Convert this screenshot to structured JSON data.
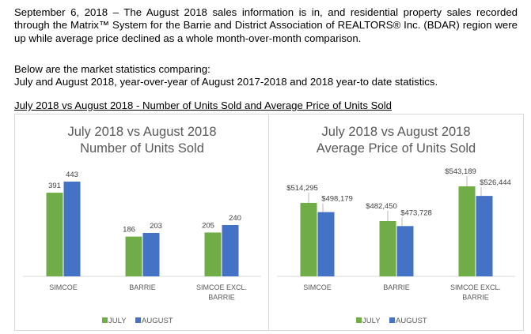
{
  "intro": {
    "paragraph": "September 6, 2018 – The August 2018 sales information is in, and residential property sales recorded through the Matrix™ System for the Barrie and District Association of REALTORS® Inc. (BDAR) region were up while average price declined as a whole month-over-month comparison.",
    "line1": "Below are the market statistics comparing:",
    "line2": "July and August 2018, year-over-year of August 2017-2018 and 2018 year-to date statistics."
  },
  "section_title": "July 2018 vs August 2018 - Number of Units Sold and Average Price of Units Sold",
  "colors": {
    "july": "#70ad47",
    "august": "#4472c4"
  },
  "chart_data": [
    {
      "type": "bar",
      "title_lines": [
        "July 2018 vs August 2018",
        "Number of Units Sold"
      ],
      "categories": [
        [
          "SIMCOE"
        ],
        [
          "BARRIE"
        ],
        [
          "SIMCOE EXCL.",
          "BARRIE"
        ]
      ],
      "series": [
        {
          "name": "JULY",
          "values": [
            391,
            186,
            205
          ],
          "labels": [
            "391",
            "186",
            "205"
          ]
        },
        {
          "name": "AUGUST",
          "values": [
            443,
            203,
            240
          ],
          "labels": [
            "443",
            "203",
            "240"
          ]
        }
      ],
      "ylim": [
        0,
        443
      ],
      "legend": "bottom",
      "grid": false
    },
    {
      "type": "bar",
      "title_lines": [
        "July 2018 vs August 2018",
        "Average Price of Units Sold"
      ],
      "categories": [
        [
          "SIMCOE"
        ],
        [
          "BARRIE"
        ],
        [
          "SIMCOE EXCL.",
          "BARRIE"
        ]
      ],
      "series": [
        {
          "name": "JULY",
          "values": [
            514295,
            482450,
            543189
          ],
          "labels": [
            "$514,295",
            "$482,450",
            "$543,189"
          ]
        },
        {
          "name": "AUGUST",
          "values": [
            498179,
            473728,
            526444
          ],
          "labels": [
            "$498,179",
            "$473,728",
            "$526,444"
          ]
        }
      ],
      "ylim": [
        430000,
        543189
      ],
      "legend": "bottom",
      "grid": false
    }
  ]
}
